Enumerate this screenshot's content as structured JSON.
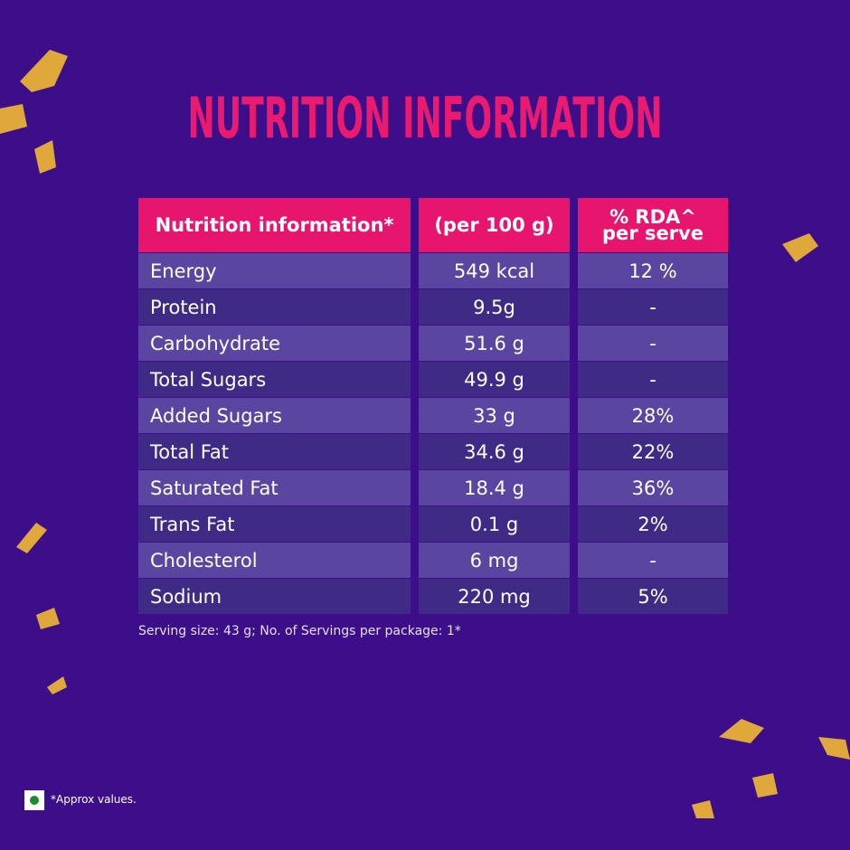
{
  "title": "NUTRITION INFORMATION",
  "table": {
    "header": [
      "Nutrition information*",
      "(per 100 g)",
      "% RDA^\nper serve"
    ],
    "rows": [
      [
        "Energy",
        "549 kcal",
        "12 %"
      ],
      [
        "Protein",
        "9.5g",
        "-"
      ],
      [
        "Carbohydrate",
        "51.6 g",
        "-"
      ],
      [
        "Total Sugars",
        "49.9 g",
        "-"
      ],
      [
        "Added Sugars",
        "33 g",
        "28%"
      ],
      [
        "Total Fat",
        "34.6 g",
        "22%"
      ],
      [
        "Saturated Fat",
        "18.4 g",
        "36%"
      ],
      [
        "Trans Fat",
        "0.1 g",
        "2%"
      ],
      [
        "Cholesterol",
        "6 mg",
        "-"
      ],
      [
        "Sodium",
        "220 mg",
        "5%"
      ]
    ]
  },
  "footnote": "Serving size: 43 g; No. of Servings per package: 1*",
  "approx_note": "*Approx values."
}
